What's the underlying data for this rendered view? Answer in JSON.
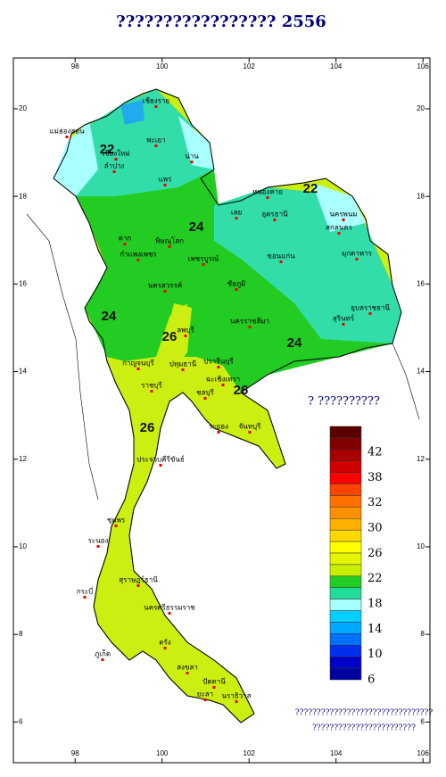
{
  "title": "?????????????????  2556",
  "map": {
    "lon_range": [
      96.58,
      106.16
    ],
    "lat_range": [
      5.07,
      21.16
    ],
    "xticks": [
      98,
      100,
      102,
      104,
      106
    ],
    "yticks": [
      6,
      8,
      10,
      12,
      14,
      16,
      18,
      20
    ],
    "contour_labels": [
      22,
      22,
      24,
      24,
      24,
      26,
      26,
      26
    ],
    "places": [
      "เชียงราย",
      "แม่ฮ่องสอน",
      "พะเยา",
      "เชียงใหม่",
      "น่าน",
      "ลำปาง",
      "แพร่",
      "หนองคาย",
      "อุดรธานี",
      "เลย",
      "นครพนม",
      "สกลนคร",
      "มุกดาหาร",
      "ขอนแก่น",
      "ตาก",
      "พิษณุโลก",
      "กำแพงเพชร",
      "เพชรบูรณ์",
      "นครสวรรค์",
      "ชัยภูมิ",
      "อุบลราชธานี",
      "สุรินทร์",
      "นครราชสีมา",
      "ลพบุรี",
      "กาญจนบุรี",
      "ปทุมธานี",
      "ปราจีนบุรี",
      "ราชบุรี",
      "ฉะเชิงเทรา",
      "ชลบุรี",
      "ระยอง",
      "จันทบุรี",
      "ประจวบคีรีขันธ์",
      "ชุมพร",
      "ระนอง",
      "สุราษฎร์ธานี",
      "กระบี่",
      "นครศรีธรรมราช",
      "ภูเก็ต",
      "ตรัง",
      "สงขลา",
      "ปัตตานี",
      "ยะลา",
      "นราธิวาส"
    ]
  },
  "legend": {
    "title": "?  ??????????",
    "labels": [
      42,
      38,
      32,
      30,
      26,
      22,
      18,
      14,
      10,
      6
    ],
    "colors": [
      "#5a0000",
      "#800000",
      "#a80000",
      "#d00000",
      "#ff0000",
      "#ff4400",
      "#ff7000",
      "#ff9000",
      "#ffb000",
      "#ffd800",
      "#ffff00",
      "#e4f500",
      "#c8ee00",
      "#22cc22",
      "#22dd99",
      "#a8ffff",
      "#00d0ff",
      "#00a8ff",
      "#0070ff",
      "#0030ee",
      "#0000c8",
      "#0000a0"
    ]
  },
  "note": [
    "????????????????????????????????",
    "????????????????????????"
  ]
}
